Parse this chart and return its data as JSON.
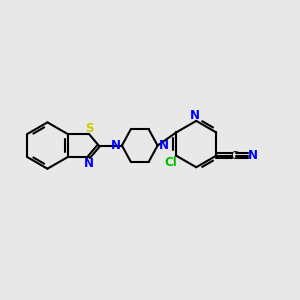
{
  "bg_color": "#e8e8e8",
  "bond_color": "#000000",
  "bond_width": 1.5,
  "atom_colors": {
    "N": "#0000ff",
    "S": "#cccc00",
    "Cl": "#00bb00"
  },
  "figsize": [
    3.0,
    3.0
  ],
  "dpi": 100,
  "fontsize": 8.5
}
